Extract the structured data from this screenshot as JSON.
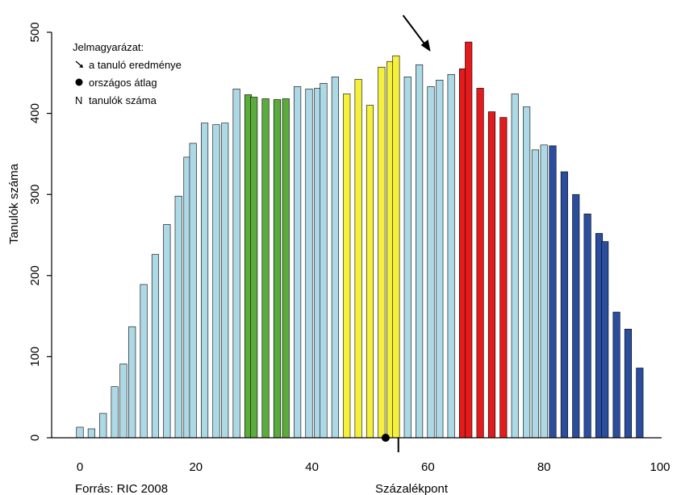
{
  "chart_data": {
    "type": "bar",
    "xlabel": "Százalékpont",
    "ylabel": "Tanulók száma",
    "xlim": [
      0,
      100
    ],
    "ylim": [
      0,
      500
    ],
    "xticks": [
      "0",
      "20",
      "40",
      "60",
      "80",
      "100"
    ],
    "yticks": [
      "0",
      "100",
      "200",
      "300",
      "400",
      "500"
    ],
    "source": "Forrás: RIC 2008",
    "legend": {
      "title": "Jelmagyarázat:",
      "placement": "top-left",
      "items": [
        {
          "symbol": "arrow",
          "label": "a tanuló eredménye"
        },
        {
          "symbol": "dot",
          "label": "országos átlag"
        },
        {
          "symbol": "N",
          "label": "tanulók száma"
        }
      ]
    },
    "colors": {
      "lightblue": "#add8e6",
      "green": "#5aac3c",
      "yellow": "#f5f03c",
      "red": "#e41a1c",
      "darkblue": "#2b4d9e"
    },
    "student_result_percent": 61,
    "national_average_percent": 52.7,
    "national_average_marker_percent": 54.9,
    "bars": [
      {
        "x": 0,
        "value": 13,
        "color": "lightblue"
      },
      {
        "x": 2,
        "value": 11,
        "color": "lightblue"
      },
      {
        "x": 4,
        "value": 30,
        "color": "lightblue"
      },
      {
        "x": 6,
        "value": 63,
        "color": "lightblue"
      },
      {
        "x": 7.5,
        "value": 91,
        "color": "lightblue"
      },
      {
        "x": 9,
        "value": 137,
        "color": "lightblue"
      },
      {
        "x": 11,
        "value": 189,
        "color": "lightblue"
      },
      {
        "x": 13,
        "value": 226,
        "color": "lightblue"
      },
      {
        "x": 15,
        "value": 263,
        "color": "lightblue"
      },
      {
        "x": 17,
        "value": 298,
        "color": "lightblue"
      },
      {
        "x": 18.5,
        "value": 346,
        "color": "lightblue"
      },
      {
        "x": 19.5,
        "value": 363,
        "color": "lightblue"
      },
      {
        "x": 21.5,
        "value": 388,
        "color": "lightblue"
      },
      {
        "x": 23.5,
        "value": 386,
        "color": "lightblue"
      },
      {
        "x": 25,
        "value": 388,
        "color": "lightblue"
      },
      {
        "x": 27,
        "value": 430,
        "color": "lightblue"
      },
      {
        "x": 29,
        "value": 423,
        "color": "green"
      },
      {
        "x": 30,
        "value": 420,
        "color": "green"
      },
      {
        "x": 32,
        "value": 418,
        "color": "green"
      },
      {
        "x": 34,
        "value": 417,
        "color": "green"
      },
      {
        "x": 35.5,
        "value": 418,
        "color": "green"
      },
      {
        "x": 37.5,
        "value": 433,
        "color": "lightblue"
      },
      {
        "x": 39.5,
        "value": 430,
        "color": "lightblue"
      },
      {
        "x": 41,
        "value": 431,
        "color": "lightblue"
      },
      {
        "x": 42,
        "value": 437,
        "color": "lightblue"
      },
      {
        "x": 44,
        "value": 445,
        "color": "lightblue"
      },
      {
        "x": 46,
        "value": 424,
        "color": "yellow"
      },
      {
        "x": 48,
        "value": 442,
        "color": "yellow"
      },
      {
        "x": 50,
        "value": 410,
        "color": "yellow"
      },
      {
        "x": 52,
        "value": 457,
        "color": "yellow"
      },
      {
        "x": 53.5,
        "value": 464,
        "color": "yellow"
      },
      {
        "x": 54.5,
        "value": 471,
        "color": "yellow"
      },
      {
        "x": 56.5,
        "value": 445,
        "color": "lightblue"
      },
      {
        "x": 58.5,
        "value": 460,
        "color": "lightblue"
      },
      {
        "x": 60.5,
        "value": 433,
        "color": "lightblue"
      },
      {
        "x": 62,
        "value": 441,
        "color": "lightblue"
      },
      {
        "x": 64,
        "value": 448,
        "color": "lightblue"
      },
      {
        "x": 66,
        "value": 455,
        "color": "red"
      },
      {
        "x": 67,
        "value": 488,
        "color": "red"
      },
      {
        "x": 69,
        "value": 431,
        "color": "red"
      },
      {
        "x": 71,
        "value": 402,
        "color": "red"
      },
      {
        "x": 73,
        "value": 395,
        "color": "red"
      },
      {
        "x": 75,
        "value": 424,
        "color": "lightblue"
      },
      {
        "x": 77,
        "value": 408,
        "color": "lightblue"
      },
      {
        "x": 78.5,
        "value": 355,
        "color": "lightblue"
      },
      {
        "x": 80,
        "value": 361,
        "color": "lightblue"
      },
      {
        "x": 81.5,
        "value": 360,
        "color": "darkblue"
      },
      {
        "x": 83.5,
        "value": 328,
        "color": "darkblue"
      },
      {
        "x": 85.5,
        "value": 300,
        "color": "darkblue"
      },
      {
        "x": 87.5,
        "value": 276,
        "color": "darkblue"
      },
      {
        "x": 89.5,
        "value": 252,
        "color": "darkblue"
      },
      {
        "x": 90.5,
        "value": 242,
        "color": "darkblue"
      },
      {
        "x": 92.5,
        "value": 155,
        "color": "darkblue"
      },
      {
        "x": 94.5,
        "value": 134,
        "color": "darkblue"
      },
      {
        "x": 96.5,
        "value": 86,
        "color": "darkblue"
      }
    ]
  }
}
